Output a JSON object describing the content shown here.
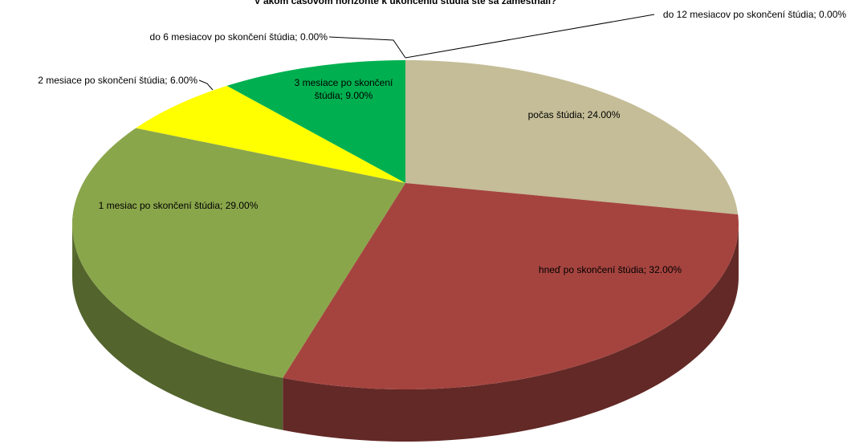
{
  "chart_data": {
    "type": "pie3d",
    "title": "V akom časovom horizonte k ukončeniu štúdia ste sa zamestnali?",
    "categories": [
      "počas štúdia",
      "hneď po skončení štúdia",
      "1 mesiac po skončení štúdia",
      "2 mesiace po skončení štúdia",
      "3 mesiace po skončení štúdia",
      "do 6 mesiacov po skončení štúdia",
      "do 12 mesiacov po skončení štúdia"
    ],
    "values": [
      24,
      32,
      29,
      6,
      9,
      0,
      0
    ],
    "value_labels": [
      "24.00%",
      "32.00%",
      "29.00%",
      "6.00%",
      "9.00%",
      "0.00%",
      "0.00%"
    ],
    "colors": [
      "#c4bd97",
      "#a5443f",
      "#8aa64b",
      "#ffff00",
      "#00b050",
      "#4f81bd",
      "#f79646"
    ]
  }
}
